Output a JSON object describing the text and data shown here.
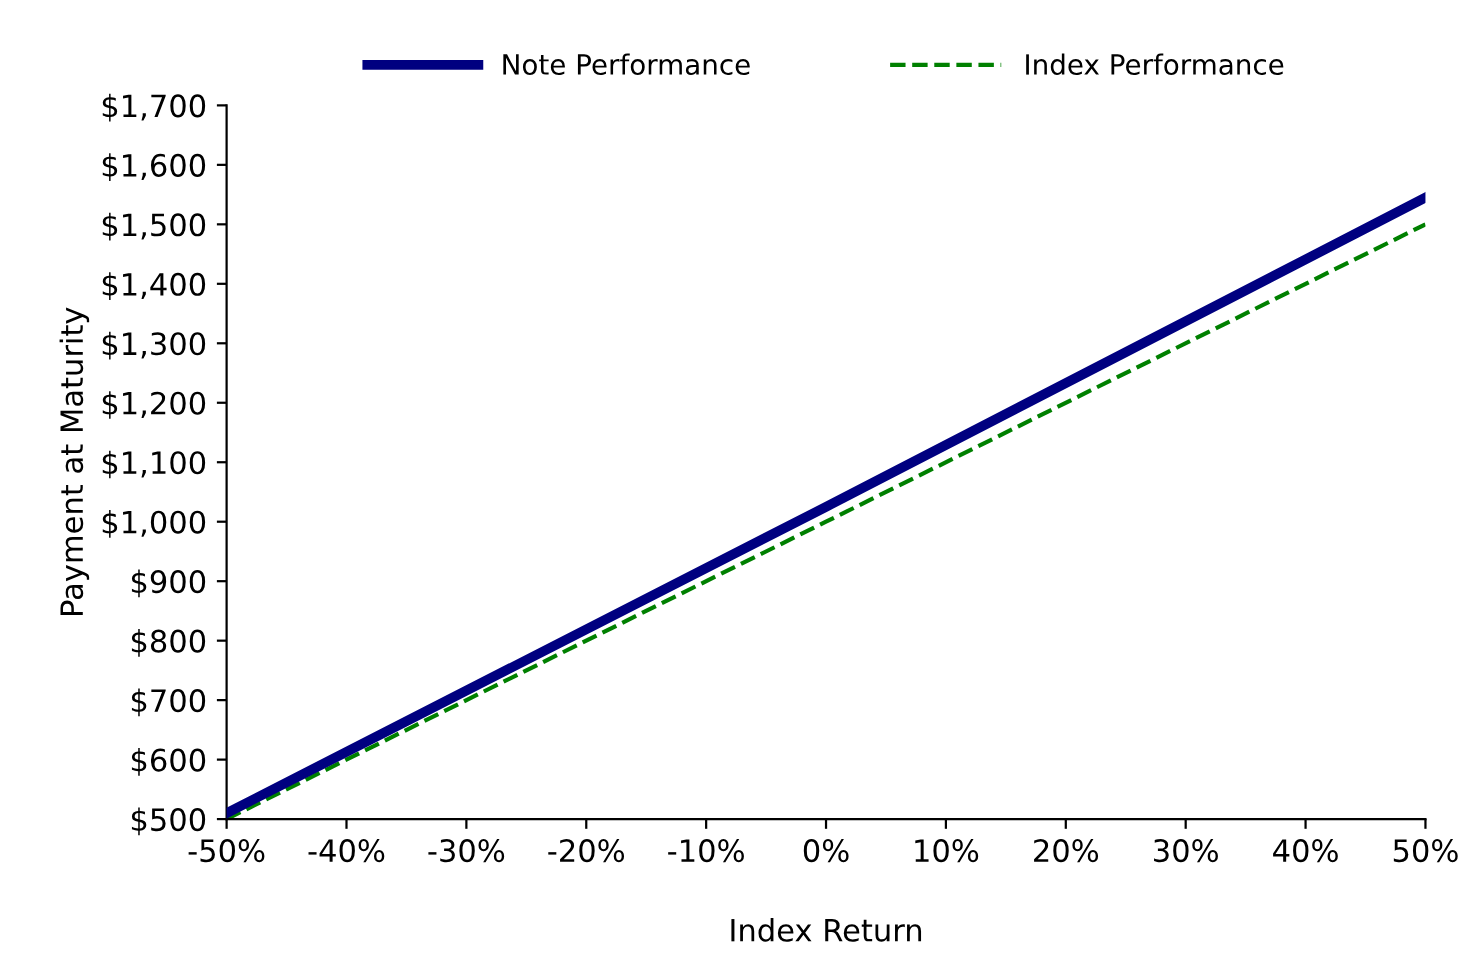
{
  "chart_data": {
    "type": "line",
    "xlabel": "Index Return",
    "ylabel": "Payment at Maturity",
    "xlim": [
      -50,
      50
    ],
    "xticks": [
      {
        "value": -50,
        "label": "-50%"
      },
      {
        "value": -40,
        "label": "-40%"
      },
      {
        "value": -30,
        "label": "-30%"
      },
      {
        "value": -20,
        "label": "-20%"
      },
      {
        "value": -10,
        "label": "-10%"
      },
      {
        "value": 0,
        "label": "0%"
      },
      {
        "value": 10,
        "label": "10%"
      },
      {
        "value": 20,
        "label": "20%"
      },
      {
        "value": 30,
        "label": "30%"
      },
      {
        "value": 40,
        "label": "40%"
      },
      {
        "value": 50,
        "label": "50%"
      }
    ],
    "ylim": [
      500,
      1700
    ],
    "yticks": [
      {
        "value": 500,
        "label": "$500"
      },
      {
        "value": 600,
        "label": "$600"
      },
      {
        "value": 700,
        "label": "$700"
      },
      {
        "value": 800,
        "label": "$800"
      },
      {
        "value": 900,
        "label": "$900"
      },
      {
        "value": 1000,
        "label": "$1,000"
      },
      {
        "value": 1100,
        "label": "$1,100"
      },
      {
        "value": 1200,
        "label": "$1,200"
      },
      {
        "value": 1300,
        "label": "$1,300"
      },
      {
        "value": 1400,
        "label": "$1,400"
      },
      {
        "value": 1500,
        "label": "$1,500"
      },
      {
        "value": 1600,
        "label": "$1,600"
      },
      {
        "value": 1700,
        "label": "$1,700"
      }
    ],
    "grid": false,
    "legend": "top",
    "marker": "none",
    "series": [
      {
        "name": "Note Performance",
        "color": "#000080",
        "line_style": "solid",
        "x": [
          -50,
          0,
          50
        ],
        "values": [
          510,
          1025,
          1545
        ]
      },
      {
        "name": "Index Performance",
        "color": "#008000",
        "line_style": "dashed",
        "x": [
          -50,
          0,
          50
        ],
        "values": [
          500,
          1000,
          1500
        ]
      }
    ]
  }
}
